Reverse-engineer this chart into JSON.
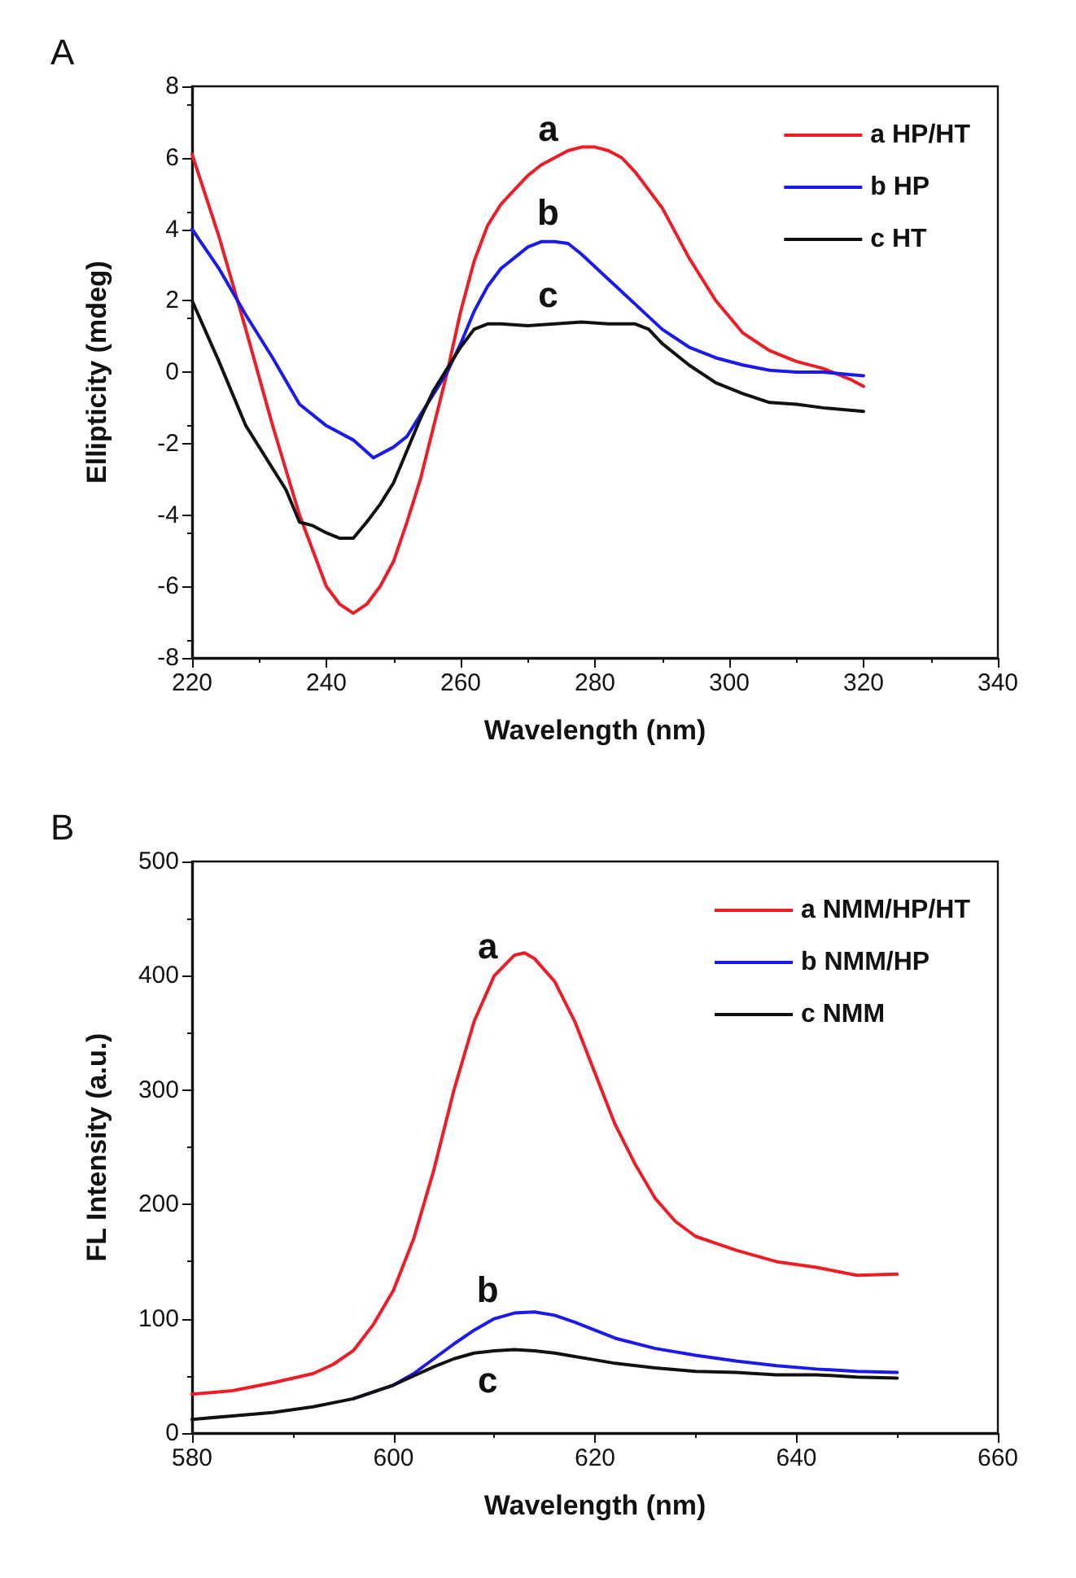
{
  "chart_data": [
    {
      "type": "line",
      "title": "A",
      "xlabel": "Wavelength (nm)",
      "ylabel": "Ellipticity (mdeg)",
      "xlim": [
        220,
        340
      ],
      "xticks": [
        220,
        240,
        260,
        280,
        300,
        320,
        340
      ],
      "ylim": [
        -8,
        8
      ],
      "yticks": [
        -8,
        -6,
        -4,
        -2,
        0,
        2,
        4,
        6,
        8
      ],
      "grid": false,
      "legend": "top right",
      "marker": "none",
      "line_style": "solid",
      "annotations": [
        "a",
        "b",
        "c"
      ],
      "series": [
        {
          "name": "a HP/HT",
          "color": "#ee1c25",
          "x": [
            220,
            224,
            228,
            232,
            236,
            240,
            242,
            244,
            246,
            248,
            250,
            252,
            254,
            256,
            258,
            260,
            262,
            264,
            266,
            268,
            270,
            272,
            274,
            276,
            278,
            280,
            282,
            284,
            286,
            290,
            294,
            298,
            302,
            306,
            310,
            314,
            318,
            320
          ],
          "values": [
            6.1,
            3.8,
            1.2,
            -1.5,
            -4,
            -6,
            -6.5,
            -6.75,
            -6.5,
            -6,
            -5.3,
            -4.2,
            -3,
            -1.5,
            0,
            1.7,
            3.1,
            4.1,
            4.7,
            5.1,
            5.5,
            5.8,
            6,
            6.2,
            6.3,
            6.3,
            6.2,
            6,
            5.6,
            4.6,
            3.2,
            2,
            1.1,
            0.6,
            0.3,
            0.1,
            -0.2,
            -0.4
          ]
        },
        {
          "name": "b HP",
          "color": "#1a1aee",
          "x": [
            220,
            224,
            228,
            232,
            236,
            240,
            244,
            247,
            250,
            252,
            254,
            256,
            258,
            260,
            262,
            264,
            266,
            268,
            270,
            272,
            274,
            276,
            278,
            282,
            286,
            290,
            294,
            298,
            302,
            306,
            310,
            314,
            320
          ],
          "values": [
            4,
            2.9,
            1.6,
            0.4,
            -0.9,
            -1.5,
            -1.9,
            -2.4,
            -2.1,
            -1.8,
            -1.2,
            -0.6,
            0,
            0.8,
            1.7,
            2.4,
            2.9,
            3.2,
            3.5,
            3.65,
            3.65,
            3.6,
            3.3,
            2.6,
            1.9,
            1.2,
            0.7,
            0.4,
            0.2,
            0.05,
            0,
            0,
            -0.1
          ]
        },
        {
          "name": "c HT",
          "color": "#111111",
          "x": [
            220,
            224,
            228,
            230,
            234,
            236,
            238,
            240,
            242,
            244,
            246,
            248,
            250,
            252,
            254,
            256,
            258,
            260,
            262,
            264,
            266,
            270,
            274,
            278,
            282,
            286,
            288,
            290,
            294,
            298,
            302,
            306,
            310,
            314,
            320
          ],
          "values": [
            2,
            0.3,
            -1.5,
            -2.1,
            -3.3,
            -4.2,
            -4.3,
            -4.5,
            -4.65,
            -4.65,
            -4.2,
            -3.7,
            -3.1,
            -2.2,
            -1.3,
            -0.5,
            0.1,
            0.7,
            1.2,
            1.35,
            1.35,
            1.3,
            1.35,
            1.4,
            1.35,
            1.35,
            1.2,
            0.8,
            0.2,
            -0.3,
            -0.6,
            -0.85,
            -0.9,
            -1,
            -1.1
          ]
        }
      ]
    },
    {
      "type": "line",
      "title": "B",
      "xlabel": "Wavelength (nm)",
      "ylabel": "FL Intensity (a.u.)",
      "xlim": [
        580,
        660
      ],
      "xticks": [
        580,
        600,
        620,
        640,
        660
      ],
      "ylim": [
        0,
        500
      ],
      "yticks": [
        0,
        100,
        200,
        300,
        400,
        500
      ],
      "grid": false,
      "legend": "top right",
      "marker": "none",
      "line_style": "solid",
      "annotations": [
        "a",
        "b",
        "c"
      ],
      "series": [
        {
          "name": "a NMM/HP/HT",
          "color": "#ee1c25",
          "x": [
            580,
            584,
            588,
            592,
            594,
            596,
            598,
            600,
            602,
            604,
            606,
            608,
            610,
            612,
            613,
            614,
            616,
            618,
            620,
            622,
            624,
            626,
            628,
            630,
            634,
            638,
            642,
            646,
            650
          ],
          "values": [
            34,
            37,
            44,
            52,
            60,
            72,
            95,
            125,
            170,
            230,
            300,
            360,
            400,
            418,
            420,
            415,
            395,
            360,
            315,
            270,
            235,
            205,
            185,
            172,
            160,
            150,
            145,
            138,
            139
          ]
        },
        {
          "name": "b NMM/HP",
          "color": "#1a1aee",
          "x": [
            596,
            600,
            602,
            604,
            606,
            608,
            610,
            612,
            614,
            616,
            618,
            620,
            622,
            626,
            630,
            634,
            638,
            642,
            646,
            650
          ],
          "values": [
            30,
            42,
            52,
            65,
            78,
            90,
            100,
            105,
            106,
            103,
            97,
            90,
            83,
            74,
            68,
            63,
            59,
            56,
            54,
            53
          ]
        },
        {
          "name": "c NMM",
          "color": "#111111",
          "x": [
            580,
            584,
            588,
            592,
            596,
            600,
            602,
            604,
            606,
            608,
            610,
            612,
            614,
            616,
            618,
            620,
            622,
            626,
            630,
            634,
            638,
            642,
            646,
            650
          ],
          "values": [
            12,
            15,
            18,
            23,
            30,
            42,
            50,
            58,
            65,
            70,
            72,
            73,
            72,
            70,
            67,
            64,
            61,
            57,
            54,
            53,
            51,
            51,
            49,
            48
          ]
        }
      ]
    }
  ]
}
